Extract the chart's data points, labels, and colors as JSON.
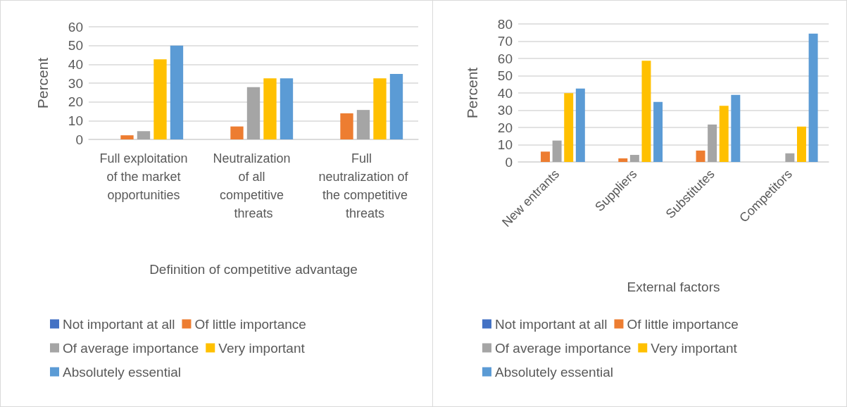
{
  "chart_data": [
    {
      "type": "bar",
      "xlabel": "Definition of competitive advantage",
      "ylabel": "Percent",
      "categories": [
        "Full exploitation of the market opportunities",
        "Neutralization of all competitive threats",
        "Full neutralization of the competitive threats"
      ],
      "series": [
        {
          "name": "Not important at all",
          "color": "#4472c4",
          "values": [
            0,
            0,
            0
          ]
        },
        {
          "name": "Of little importance",
          "color": "#ed7d31",
          "values": [
            2.2,
            6.9,
            13.9
          ]
        },
        {
          "name": "Of average importance",
          "color": "#a5a5a5",
          "values": [
            4.4,
            27.8,
            15.7
          ]
        },
        {
          "name": "Very important",
          "color": "#ffc000",
          "values": [
            42.7,
            32.5,
            32.5
          ]
        },
        {
          "name": "Absolutely essential",
          "color": "#5b9bd5",
          "values": [
            50,
            32.5,
            34.9
          ]
        }
      ],
      "ylim": [
        0,
        60
      ],
      "yticks": [
        0,
        10,
        20,
        30,
        40,
        50,
        60
      ],
      "grid": "y",
      "legend": "bottom"
    },
    {
      "type": "bar",
      "xlabel": "External factors",
      "ylabel": "Percent",
      "categories": [
        "New entrants",
        "Suppliers",
        "Substitutes",
        "Competitors"
      ],
      "series": [
        {
          "name": "Not important at all",
          "color": "#4472c4",
          "values": [
            0,
            0,
            0,
            0
          ]
        },
        {
          "name": "Of little importance",
          "color": "#ed7d31",
          "values": [
            6,
            2.1,
            6.6,
            0
          ]
        },
        {
          "name": "Of average importance",
          "color": "#a5a5a5",
          "values": [
            12.4,
            4.1,
            21.7,
            5
          ]
        },
        {
          "name": "Very important",
          "color": "#ffc000",
          "values": [
            39.9,
            58.7,
            32.6,
            20.5
          ]
        },
        {
          "name": "Absolutely essential",
          "color": "#5b9bd5",
          "values": [
            42.6,
            34.8,
            38.9,
            74.4
          ]
        }
      ],
      "ylim": [
        0,
        80
      ],
      "yticks": [
        0,
        10,
        20,
        30,
        40,
        50,
        60,
        70,
        80
      ],
      "grid": "y",
      "legend": "bottom"
    }
  ]
}
